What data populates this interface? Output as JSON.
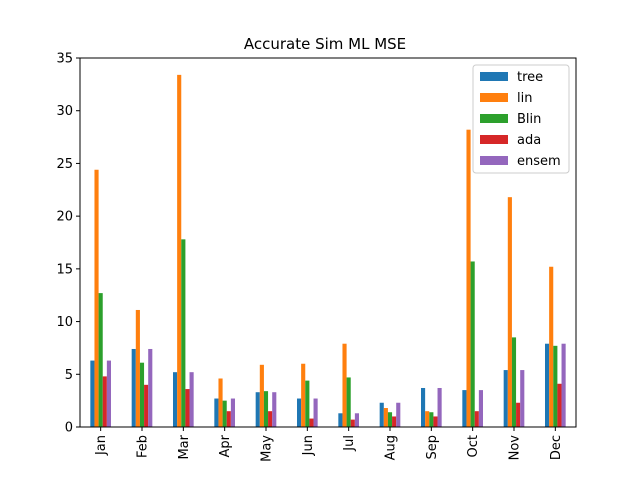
{
  "chart_data": {
    "type": "bar",
    "title": "Accurate Sim ML MSE",
    "xlabel": "",
    "ylabel": "",
    "ylim": [
      0,
      35
    ],
    "yticks": [
      0,
      5,
      10,
      15,
      20,
      25,
      30,
      35
    ],
    "grid": false,
    "legend_position": "top-right",
    "categories": [
      "Jan",
      "Feb",
      "Mar",
      "Apr",
      "May",
      "Jun",
      "Jul",
      "Aug",
      "Sep",
      "Oct",
      "Nov",
      "Dec"
    ],
    "series": [
      {
        "name": "tree",
        "color": "#1f77b4",
        "values": [
          6.3,
          7.4,
          5.2,
          2.7,
          3.3,
          2.7,
          1.3,
          2.3,
          3.7,
          3.5,
          5.4,
          7.9
        ]
      },
      {
        "name": "lin",
        "color": "#ff7f0e",
        "values": [
          24.4,
          11.1,
          33.4,
          4.6,
          5.9,
          6.0,
          7.9,
          1.8,
          1.5,
          28.2,
          21.8,
          15.2
        ]
      },
      {
        "name": "Blin",
        "color": "#2ca02c",
        "values": [
          12.7,
          6.1,
          17.8,
          2.5,
          3.4,
          4.4,
          4.7,
          1.4,
          1.4,
          15.7,
          8.5,
          7.7
        ]
      },
      {
        "name": "ada",
        "color": "#d62728",
        "values": [
          4.8,
          4.0,
          3.6,
          1.5,
          1.5,
          0.8,
          0.7,
          1.0,
          1.0,
          1.5,
          2.3,
          4.1
        ]
      },
      {
        "name": "ensem",
        "color": "#9467bd",
        "values": [
          6.3,
          7.4,
          5.2,
          2.7,
          3.3,
          2.7,
          1.3,
          2.3,
          3.7,
          3.5,
          5.4,
          7.9
        ]
      }
    ]
  }
}
